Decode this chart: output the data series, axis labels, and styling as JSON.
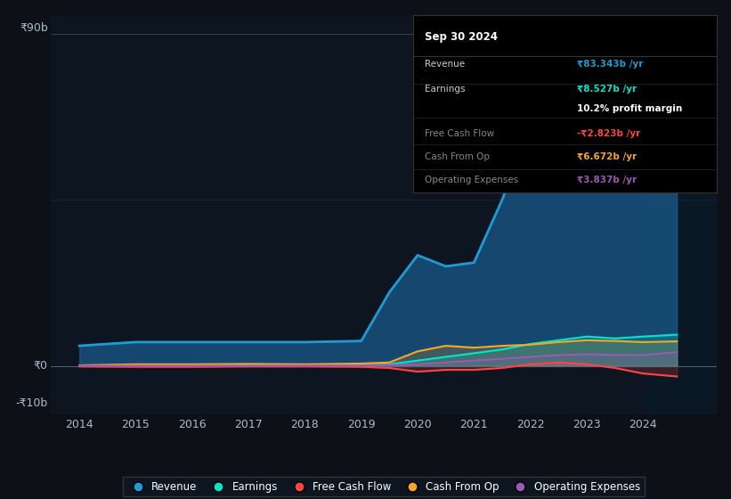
{
  "background_color": "#0d1117",
  "plot_bg_color": "#0d1520",
  "grid_color": "#2a3a4a",
  "y90_line_color": "#3a4a5a",
  "ylabel_90": "₹90b",
  "ylabel_0": "₹0",
  "ylabel_neg10": "-₹10b",
  "x_years": [
    2014,
    2015,
    2016,
    2017,
    2018,
    2019,
    2019.5,
    2020,
    2020.5,
    2021,
    2021.5,
    2022,
    2022.5,
    2023,
    2023.5,
    2024,
    2024.6
  ],
  "revenue": [
    5.5,
    6.5,
    6.5,
    6.5,
    6.5,
    6.8,
    20,
    30,
    27,
    28,
    45,
    65,
    72,
    75,
    70,
    73,
    83
  ],
  "earnings": [
    0.2,
    0.3,
    0.2,
    0.3,
    0.3,
    0.3,
    0.5,
    1.5,
    2.5,
    3.5,
    4.5,
    6,
    7,
    8,
    7.5,
    8,
    8.5
  ],
  "free_cash_flow": [
    -0.1,
    -0.2,
    -0.2,
    -0.1,
    -0.1,
    -0.2,
    -0.5,
    -1.5,
    -1.0,
    -1.0,
    -0.5,
    0.5,
    1.0,
    0.5,
    -0.5,
    -2.0,
    -2.8
  ],
  "cash_from_op": [
    0.2,
    0.5,
    0.5,
    0.6,
    0.5,
    0.7,
    1.0,
    4.0,
    5.5,
    5.0,
    5.5,
    5.8,
    6.5,
    7.0,
    6.8,
    6.5,
    6.7
  ],
  "operating_expenses": [
    0.1,
    0.1,
    0.1,
    0.1,
    0.15,
    0.15,
    0.3,
    0.5,
    1.0,
    1.5,
    2.0,
    2.5,
    3.0,
    3.2,
    3.0,
    3.0,
    3.8
  ],
  "revenue_color": "#1e9bd4",
  "revenue_fill": "#1a5a8a",
  "earnings_color": "#00e5cc",
  "free_cash_flow_color": "#ff4444",
  "cash_from_op_color": "#f5a623",
  "operating_expenses_color": "#9b59b6",
  "tooltip_bg": "#000000",
  "tooltip_title": "Sep 30 2024",
  "ylim": [
    -13,
    95
  ],
  "xlim_start": 2013.5,
  "xlim_end": 2025.3,
  "legend_labels": [
    "Revenue",
    "Earnings",
    "Free Cash Flow",
    "Cash From Op",
    "Operating Expenses"
  ],
  "legend_colors": [
    "#1e9bd4",
    "#00e5cc",
    "#ff4444",
    "#f5a623",
    "#9b59b6"
  ],
  "tooltip_rows": [
    {
      "label": "Revenue",
      "value": "₹83.343b /yr",
      "value_color": "#1e9bd4",
      "dim_label": false
    },
    {
      "label": "Earnings",
      "value": "₹8.527b /yr",
      "value_color": "#00e5cc",
      "dim_label": false
    },
    {
      "label": "",
      "value": "10.2% profit margin",
      "value_color": "#ffffff",
      "dim_label": false
    },
    {
      "label": "Free Cash Flow",
      "value": "-₹2.823b /yr",
      "value_color": "#ff4444",
      "dim_label": true
    },
    {
      "label": "Cash From Op",
      "value": "₹6.672b /yr",
      "value_color": "#f5a623",
      "dim_label": true
    },
    {
      "label": "Operating Expenses",
      "value": "₹3.837b /yr",
      "value_color": "#9b59b6",
      "dim_label": true
    }
  ]
}
